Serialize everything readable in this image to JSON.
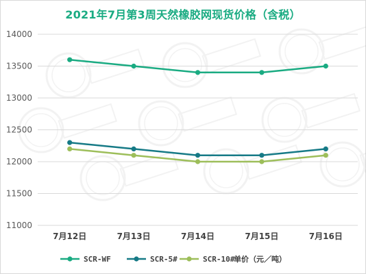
{
  "chart_data": {
    "type": "line",
    "title": "2021年7月第3周天然橡胶网现货价格（含税）",
    "categories": [
      "7月12日",
      "7月13日",
      "7月14日",
      "7月15日",
      "7月16日"
    ],
    "series": [
      {
        "name": "SCR-WF",
        "values": [
          13600,
          13500,
          13400,
          13400,
          13500
        ],
        "color": "#1aab82"
      },
      {
        "name": "SCR-5#",
        "values": [
          12300,
          12200,
          12100,
          12100,
          12200
        ],
        "color": "#167a86"
      },
      {
        "name": "SCR-10#",
        "values": [
          12200,
          12100,
          12000,
          12000,
          12100
        ],
        "color": "#9dbe5a"
      }
    ],
    "ylim": [
      11000,
      14000
    ],
    "yticks": [
      11000,
      11500,
      12000,
      12500,
      13000,
      13500,
      14000
    ],
    "grid": true,
    "legend": "bottom",
    "unit_label": "单价（元／吨）",
    "title_color": "#1aab82"
  }
}
